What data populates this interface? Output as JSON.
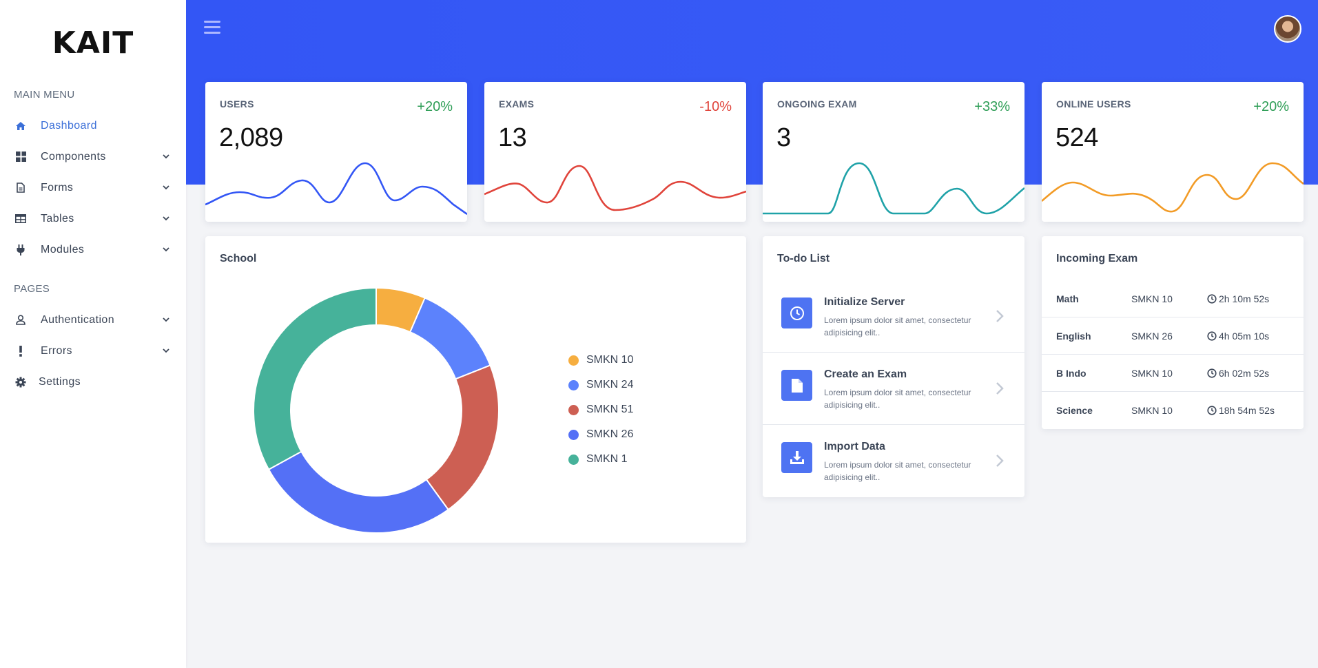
{
  "app": {
    "logo": "KAIT"
  },
  "sidebar": {
    "main_menu_title": "MAIN MENU",
    "pages_title": "PAGES",
    "items": [
      {
        "label": "Dashboard",
        "icon": "home-icon",
        "active": true
      },
      {
        "label": "Components",
        "icon": "grid-icon"
      },
      {
        "label": "Forms",
        "icon": "file-icon"
      },
      {
        "label": "Tables",
        "icon": "table-icon"
      },
      {
        "label": "Modules",
        "icon": "plug-icon"
      }
    ],
    "pages": [
      {
        "label": "Authentication",
        "icon": "user-icon"
      },
      {
        "label": "Errors",
        "icon": "exclamation-icon"
      },
      {
        "label": "Settings",
        "icon": "gear-icon"
      }
    ]
  },
  "stats": [
    {
      "label": "USERS",
      "value": "2,089",
      "change": "+20%",
      "change_color": "#2f9e57",
      "line_color": "#3356f5"
    },
    {
      "label": "EXAMS",
      "value": "13",
      "change": "-10%",
      "change_color": "#e0443b",
      "line_color": "#e0443b"
    },
    {
      "label": "ONGOING EXAM",
      "value": "3",
      "change": "+33%",
      "change_color": "#2f9e57",
      "line_color": "#1fa2a8"
    },
    {
      "label": "ONLINE USERS",
      "value": "524",
      "change": "+20%",
      "change_color": "#2f9e57",
      "line_color": "#f29b26"
    }
  ],
  "school": {
    "title": "School",
    "chart_data": {
      "type": "pie",
      "categories": [
        "SMKN 10",
        "SMKN 24",
        "SMKN 51",
        "SMKN 26",
        "SMKN 1"
      ],
      "values": [
        6.5,
        12.5,
        21,
        27,
        33
      ],
      "colors": [
        "#f6ae40",
        "#5c82fc",
        "#cd5f53",
        "#5470f6",
        "#46b29a"
      ],
      "legend_position": "right"
    }
  },
  "todo": {
    "title": "To-do List",
    "items": [
      {
        "title": "Initialize Server",
        "desc": "Lorem ipsum dolor sit amet, consectetur adipisicing elit..",
        "icon": "clock-icon"
      },
      {
        "title": "Create an Exam",
        "desc": "Lorem ipsum dolor sit amet, consectetur adipisicing elit..",
        "icon": "document-icon"
      },
      {
        "title": "Import Data",
        "desc": "Lorem ipsum dolor sit amet, consectetur adipisicing elit..",
        "icon": "download-icon"
      }
    ]
  },
  "incoming": {
    "title": "Incoming Exam",
    "rows": [
      {
        "subject": "Math",
        "school": "SMKN 10",
        "time": "2h 10m 52s"
      },
      {
        "subject": "English",
        "school": "SMKN 26",
        "time": "4h 05m 10s"
      },
      {
        "subject": "B Indo",
        "school": "SMKN 10",
        "time": "6h 02m 52s"
      },
      {
        "subject": "Science",
        "school": "SMKN 10",
        "time": "18h 54m 52s"
      }
    ]
  }
}
